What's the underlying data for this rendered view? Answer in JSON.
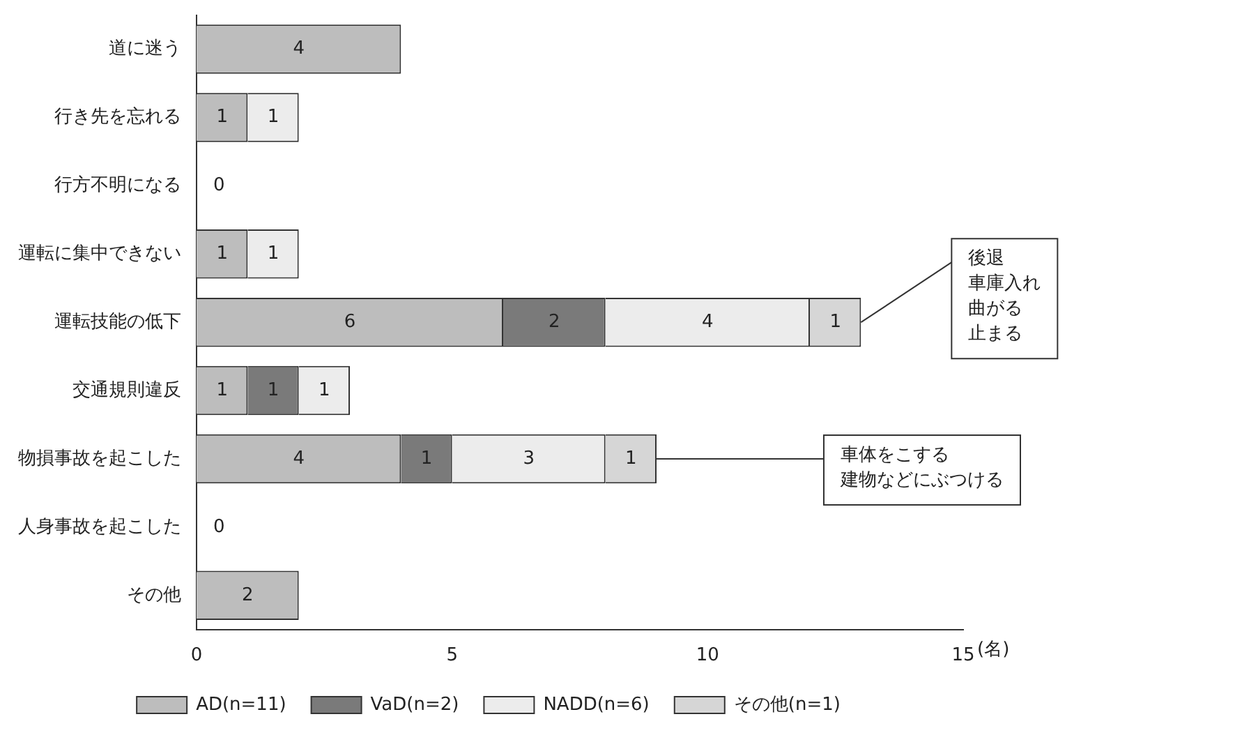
{
  "chart_data": {
    "type": "bar",
    "orientation": "horizontal",
    "stacked": true,
    "xlabel": "(名)",
    "categories": [
      "道に迷う",
      "行き先を忘れる",
      "行方不明になる",
      "運転に集中できない",
      "運転技能の低下",
      "交通規則違反",
      "物損事故を起こした",
      "人身事故を起こした",
      "その他"
    ],
    "series": [
      {
        "name": "AD(n=11)",
        "color": "#bdbdbd",
        "values": [
          4,
          1,
          0,
          1,
          6,
          1,
          4,
          0,
          2
        ]
      },
      {
        "name": "VaD(n=2)",
        "color": "#7a7a7a",
        "values": [
          null,
          null,
          null,
          null,
          2,
          1,
          1,
          null,
          null
        ]
      },
      {
        "name": "NADD(n=6)",
        "color": "#ececec",
        "values": [
          null,
          1,
          null,
          1,
          4,
          1,
          3,
          null,
          null
        ]
      },
      {
        "name": "その他(n=1)",
        "color": "#d6d6d6",
        "values": [
          null,
          null,
          null,
          null,
          1,
          null,
          1,
          null,
          null
        ]
      }
    ],
    "xlim": [
      0,
      15
    ],
    "xticks": [
      0,
      5,
      10,
      15
    ],
    "grid": false,
    "legend": "bottom",
    "data_labels": true,
    "annotations": [
      {
        "text": "後退",
        "x": 13,
        "y": "運転技能の低下"
      },
      "車庫入れ",
      "曲がる",
      "止まる",
      {
        "text": "車体をこする",
        "x": 9,
        "y": "物損事故を起こした"
      },
      "建物などにぶつける"
    ]
  }
}
